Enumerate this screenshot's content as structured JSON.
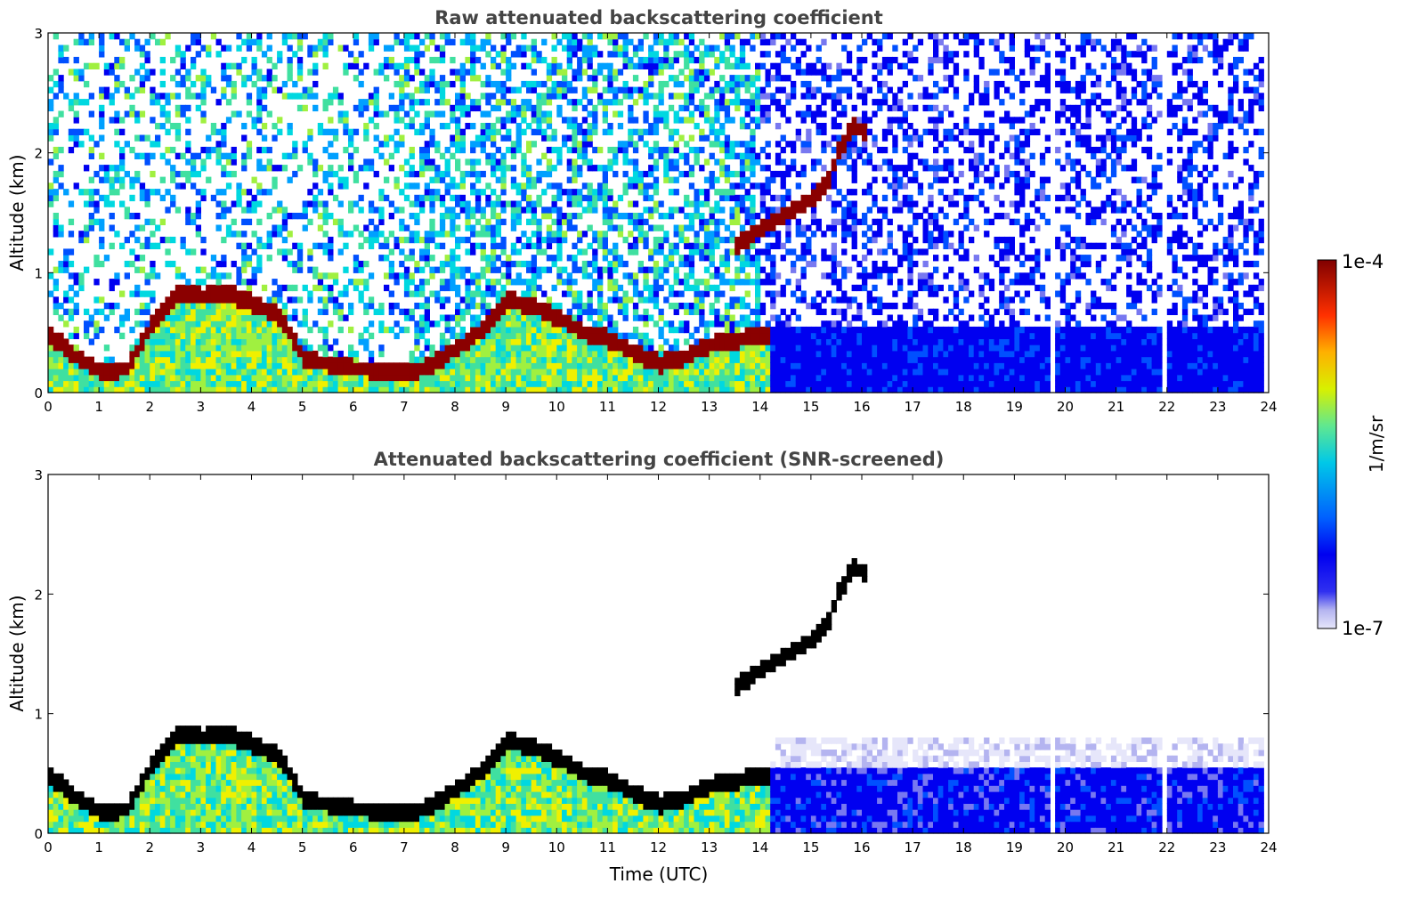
{
  "chart_data": [
    {
      "type": "heatmap",
      "title": "Raw attenuated backscattering coefficient",
      "xlabel": "",
      "ylabel": "Altitude (km)",
      "xlim": [
        0,
        24
      ],
      "ylim": [
        0,
        3
      ],
      "x_ticks": [
        "0",
        "1",
        "2",
        "3",
        "4",
        "5",
        "6",
        "7",
        "8",
        "9",
        "10",
        "11",
        "12",
        "13",
        "14",
        "15",
        "16",
        "17",
        "18",
        "19",
        "20",
        "21",
        "22",
        "23",
        "24"
      ],
      "y_ticks": [
        "0",
        "1",
        "2",
        "3"
      ],
      "screened": false,
      "boundary_layer_top_km": [
        [
          0,
          0.45
        ],
        [
          0.5,
          0.28
        ],
        [
          1,
          0.15
        ],
        [
          1.5,
          0.18
        ],
        [
          2,
          0.55
        ],
        [
          2.5,
          0.8
        ],
        [
          3,
          0.78
        ],
        [
          3.5,
          0.8
        ],
        [
          4,
          0.72
        ],
        [
          4.5,
          0.62
        ],
        [
          4.8,
          0.4
        ],
        [
          5,
          0.25
        ],
        [
          6,
          0.18
        ],
        [
          7,
          0.14
        ],
        [
          7.5,
          0.2
        ],
        [
          8,
          0.35
        ],
        [
          8.5,
          0.5
        ],
        [
          9,
          0.75
        ],
        [
          9.5,
          0.7
        ],
        [
          10,
          0.6
        ],
        [
          10.5,
          0.48
        ],
        [
          11,
          0.42
        ],
        [
          11.5,
          0.3
        ],
        [
          12,
          0.22
        ],
        [
          12.5,
          0.28
        ],
        [
          13,
          0.38
        ],
        [
          13.5,
          0.42
        ],
        [
          14,
          0.45
        ]
      ],
      "elevated_layer_km": [
        [
          13.5,
          1.2
        ],
        [
          14,
          1.35
        ],
        [
          14.5,
          1.48
        ],
        [
          15,
          1.6
        ],
        [
          15.3,
          1.75
        ],
        [
          15.5,
          2.0
        ],
        [
          15.8,
          2.2
        ],
        [
          16,
          2.15
        ]
      ],
      "data_gaps_utc": [
        [
          19.65,
          19.75
        ],
        [
          21.85,
          21.98
        ]
      ]
    },
    {
      "type": "heatmap",
      "title": "Attenuated backscattering coefficient (SNR-screened)",
      "xlabel": "Time (UTC)",
      "ylabel": "Altitude (km)",
      "xlim": [
        0,
        24
      ],
      "ylim": [
        0,
        3
      ],
      "x_ticks": [
        "0",
        "1",
        "2",
        "3",
        "4",
        "5",
        "6",
        "7",
        "8",
        "9",
        "10",
        "11",
        "12",
        "13",
        "14",
        "15",
        "16",
        "17",
        "18",
        "19",
        "20",
        "21",
        "22",
        "23",
        "24"
      ],
      "y_ticks": [
        "0",
        "1",
        "2",
        "3"
      ],
      "screened": true,
      "data_gaps_utc": [
        [
          19.65,
          19.75
        ],
        [
          21.85,
          21.98
        ]
      ]
    }
  ],
  "colorbar": {
    "label": "1/m/sr",
    "max_label": "1e-4",
    "min_label": "1e-7",
    "colormap": [
      "#e6e6fa",
      "#b4b4f0",
      "#7878f0",
      "#0000f0",
      "#0050ff",
      "#00a0ff",
      "#00d8e0",
      "#40e0a0",
      "#a0f040",
      "#f0f000",
      "#ffb000",
      "#ff5000",
      "#e00000",
      "#8b0000"
    ]
  }
}
